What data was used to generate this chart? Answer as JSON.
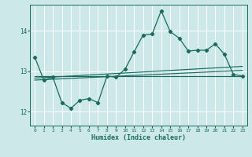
{
  "title": "",
  "xlabel": "Humidex (Indice chaleur)",
  "bg_color": "#cce8e8",
  "grid_color": "#ffffff",
  "line_color": "#1a6b5e",
  "xlim": [
    -0.5,
    23.5
  ],
  "ylim": [
    11.65,
    14.65
  ],
  "yticks": [
    12,
    13,
    14
  ],
  "xticks": [
    0,
    1,
    2,
    3,
    4,
    5,
    6,
    7,
    8,
    9,
    10,
    11,
    12,
    13,
    14,
    15,
    16,
    17,
    18,
    19,
    20,
    21,
    22,
    23
  ],
  "curve1_x": [
    0,
    1,
    2,
    3,
    4,
    5,
    6,
    7,
    8,
    9,
    10,
    11,
    12,
    13,
    14,
    15,
    16,
    17,
    18,
    19,
    20,
    21,
    22,
    23
  ],
  "curve1_y": [
    13.35,
    12.78,
    12.85,
    12.22,
    12.08,
    12.28,
    12.32,
    12.22,
    12.88,
    12.85,
    13.05,
    13.48,
    13.9,
    13.92,
    14.5,
    13.98,
    13.82,
    13.5,
    13.52,
    13.52,
    13.68,
    13.42,
    12.92,
    12.88
  ],
  "line1_x": [
    0,
    23
  ],
  "line1_y": [
    12.78,
    13.02
  ],
  "line2_x": [
    0,
    23
  ],
  "line2_y": [
    12.83,
    13.12
  ],
  "line3_x": [
    0,
    23
  ],
  "line3_y": [
    12.88,
    12.88
  ]
}
